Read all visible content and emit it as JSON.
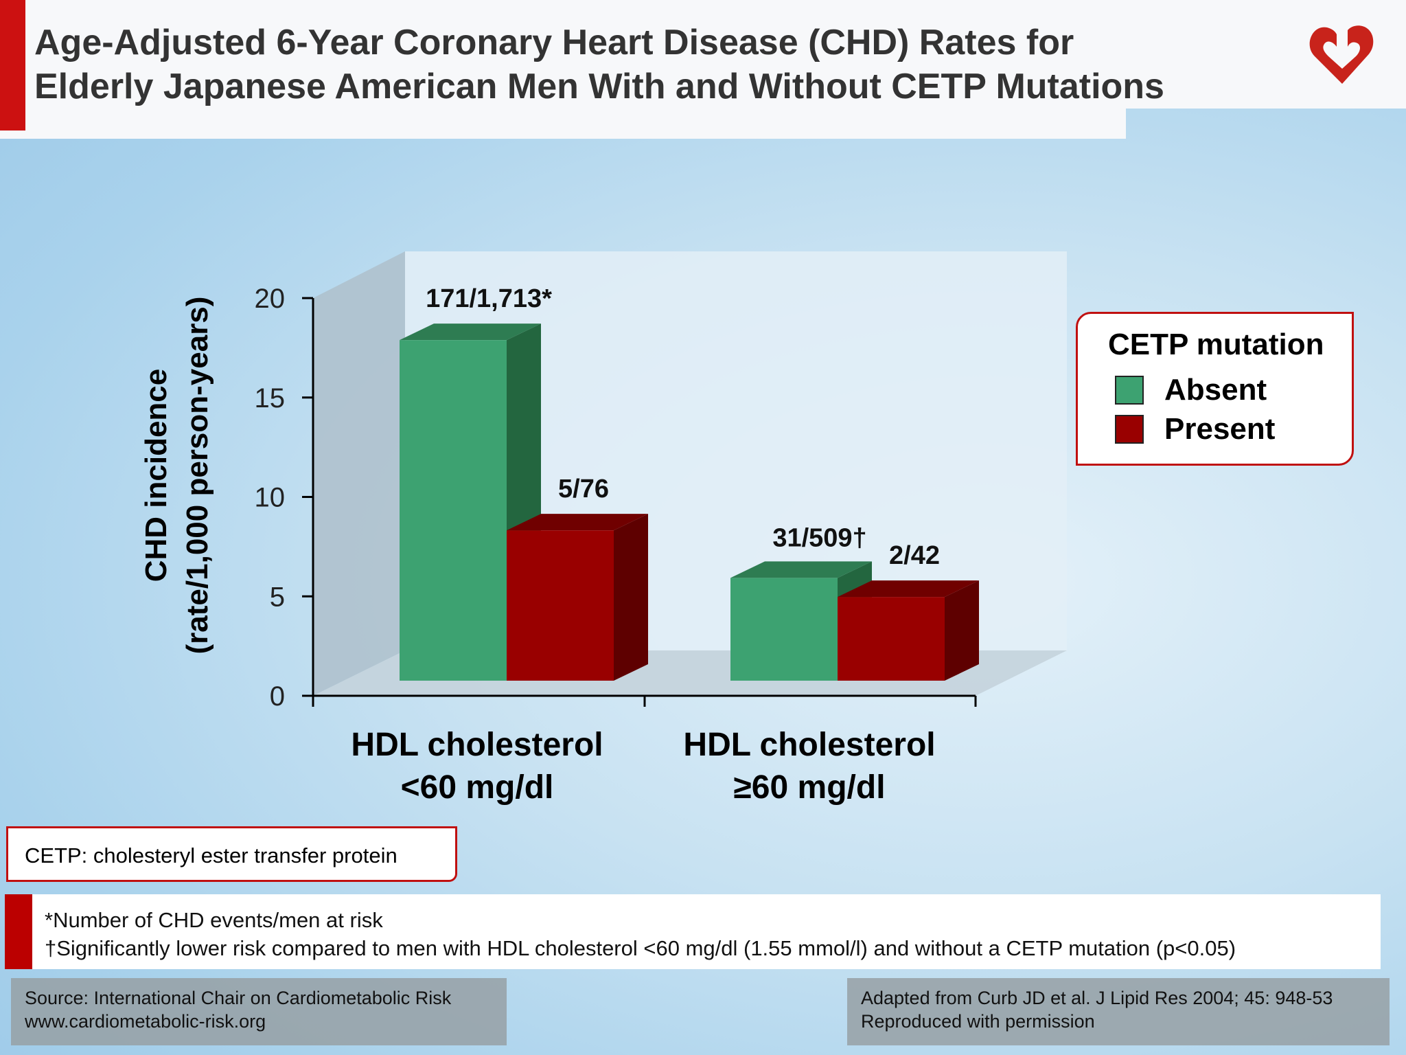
{
  "title": {
    "line1": "Age-Adjusted 6-Year Coronary Heart Disease (CHD) Rates for",
    "line2": "Elderly Japanese American Men With and Without CETP Mutations"
  },
  "logo": "heart-logo",
  "colors": {
    "absent": "#3da271",
    "present": "#990000",
    "accent": "#cc1111"
  },
  "chart_data": {
    "type": "bar",
    "ylabel_line1": "CHD incidence",
    "ylabel_line2": "(rate/1,000 person-years)",
    "ylim": [
      0,
      20
    ],
    "yticks": [
      "0",
      "5",
      "10",
      "15",
      "20"
    ],
    "categories": [
      {
        "line1": "HDL cholesterol",
        "line2": "<60 mg/dl"
      },
      {
        "line1": "HDL cholesterol",
        "line2": "≥60 mg/dl"
      }
    ],
    "series": [
      {
        "name": "Absent",
        "values": [
          17.9,
          5.4
        ],
        "labels": [
          "171/1,713*",
          "31/509†"
        ]
      },
      {
        "name": "Present",
        "values": [
          7.9,
          4.4
        ],
        "labels": [
          "5/76",
          "2/42"
        ]
      }
    ],
    "legend": {
      "title": "CETP mutation",
      "placement": "right"
    }
  },
  "cetp_note": "CETP: cholesteryl ester transfer protein",
  "footnotes": [
    "*Number of CHD events/men at risk",
    "†Significantly lower risk compared to men with HDL cholesterol <60 mg/dl (1.55 mmol/l) and without a CETP mutation (p<0.05)"
  ],
  "source": {
    "line1": "Source: International Chair on Cardiometabolic Risk",
    "line2": "www.cardiometabolic-risk.org"
  },
  "citation": {
    "line1": "Adapted from Curb JD et al. J Lipid Res 2004; 45: 948-53",
    "line2": "Reproduced with permission"
  }
}
